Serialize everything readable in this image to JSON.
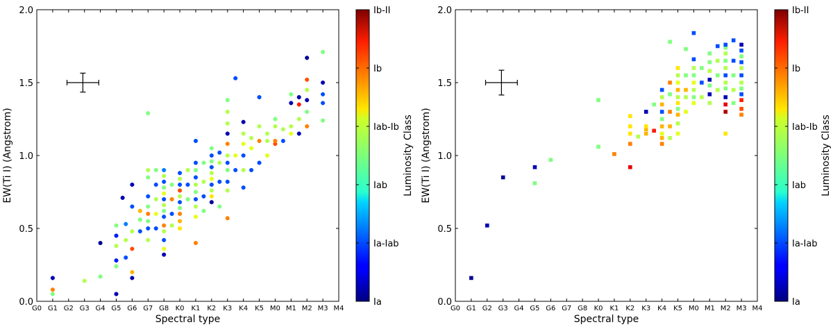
{
  "chart_data": [
    {
      "type": "scatter",
      "marker": "circle",
      "xlabel": "Spectral type",
      "ylabel": "EW(Ti I) (Angstrom)",
      "categories": [
        "G0",
        "G1",
        "G2",
        "G3",
        "G4",
        "G5",
        "G6",
        "G7",
        "G8",
        "K0",
        "K1",
        "K2",
        "K3",
        "K4",
        "K5",
        "M0",
        "M1",
        "M2",
        "M3",
        "M4"
      ],
      "ylim": [
        0.0,
        2.0
      ],
      "yticks": [
        "0.0",
        "0.5",
        "1.0",
        "1.5",
        "2.0"
      ],
      "error_bar": {
        "x": 2.9,
        "y": 1.5,
        "xerr": 1.0,
        "yerr": 0.065
      },
      "colorbar": {
        "label": "Luminosity Class",
        "ticks": [
          "Ia",
          "Ia-Iab",
          "Iab",
          "Iab-Ib",
          "Ib",
          "Ib-II"
        ]
      },
      "points": [
        [
          1,
          0.16,
          0.05
        ],
        [
          1,
          0.05,
          0.5
        ],
        [
          1,
          0.08,
          0.75
        ],
        [
          3,
          0.14,
          0.55
        ],
        [
          4,
          0.17,
          0.5
        ],
        [
          4,
          0.4,
          0.02
        ],
        [
          5,
          0.05,
          0.05
        ],
        [
          5,
          0.24,
          0.5
        ],
        [
          5,
          0.28,
          0.15
        ],
        [
          5,
          0.38,
          0.55
        ],
        [
          5,
          0.45,
          0.15
        ],
        [
          5,
          0.52,
          0.5
        ],
        [
          5.4,
          0.71,
          0.05
        ],
        [
          5.6,
          0.3,
          0.2
        ],
        [
          5.6,
          0.42,
          0.55
        ],
        [
          5.6,
          0.53,
          0.25
        ],
        [
          6,
          0.16,
          0.05
        ],
        [
          6,
          0.2,
          0.7
        ],
        [
          6,
          0.36,
          0.8
        ],
        [
          6,
          0.48,
          0.55
        ],
        [
          6,
          0.65,
          0.2
        ],
        [
          6,
          0.8,
          0.05
        ],
        [
          6.5,
          0.48,
          0.2
        ],
        [
          6.5,
          0.56,
          0.5
        ],
        [
          6.5,
          0.62,
          0.7
        ],
        [
          7,
          0.42,
          0.55
        ],
        [
          7,
          0.5,
          0.2
        ],
        [
          7,
          0.55,
          0.5
        ],
        [
          7,
          0.6,
          0.75
        ],
        [
          7,
          0.65,
          0.5
        ],
        [
          7,
          0.72,
          0.2
        ],
        [
          7,
          0.85,
          0.5
        ],
        [
          7,
          0.9,
          0.55
        ],
        [
          7,
          1.29,
          0.5
        ],
        [
          7.5,
          0.5,
          0.2
        ],
        [
          7.5,
          0.6,
          0.6
        ],
        [
          7.5,
          0.7,
          0.55
        ],
        [
          7.5,
          0.8,
          0.2
        ],
        [
          7.5,
          0.9,
          0.5
        ],
        [
          8,
          0.32,
          0.05
        ],
        [
          8,
          0.36,
          0.6
        ],
        [
          8,
          0.42,
          0.2
        ],
        [
          8,
          0.48,
          0.55
        ],
        [
          8,
          0.52,
          0.75
        ],
        [
          8,
          0.58,
          0.2
        ],
        [
          8,
          0.62,
          0.5
        ],
        [
          8,
          0.66,
          0.55
        ],
        [
          8,
          0.7,
          0.2
        ],
        [
          8,
          0.74,
          0.6
        ],
        [
          8,
          0.78,
          0.5
        ],
        [
          8,
          0.82,
          0.2
        ],
        [
          8,
          0.86,
          0.55
        ],
        [
          8,
          0.9,
          0.25
        ],
        [
          8.5,
          0.52,
          0.55
        ],
        [
          8.5,
          0.6,
          0.2
        ],
        [
          8.5,
          0.7,
          0.75
        ],
        [
          8.5,
          0.8,
          0.5
        ],
        [
          9,
          0.5,
          0.65
        ],
        [
          9,
          0.55,
          0.7
        ],
        [
          9,
          0.6,
          0.75
        ],
        [
          9,
          0.64,
          0.5
        ],
        [
          9,
          0.68,
          0.2
        ],
        [
          9,
          0.72,
          0.55
        ],
        [
          9,
          0.76,
          0.8
        ],
        [
          9,
          0.8,
          0.2
        ],
        [
          9,
          0.84,
          0.55
        ],
        [
          9,
          0.88,
          0.2
        ],
        [
          9.5,
          0.7,
          0.5
        ],
        [
          9.5,
          0.8,
          0.2
        ],
        [
          9.5,
          0.9,
          0.55
        ],
        [
          10,
          0.4,
          0.75
        ],
        [
          10,
          0.58,
          0.6
        ],
        [
          10,
          0.65,
          0.55
        ],
        [
          10,
          0.7,
          0.2
        ],
        [
          10,
          0.75,
          0.5
        ],
        [
          10,
          0.8,
          0.55
        ],
        [
          10,
          0.85,
          0.2
        ],
        [
          10,
          0.9,
          0.5
        ],
        [
          10,
          0.95,
          0.2
        ],
        [
          10,
          1.1,
          0.2
        ],
        [
          10.5,
          0.62,
          0.5
        ],
        [
          10.5,
          0.72,
          0.2
        ],
        [
          10.5,
          0.82,
          0.55
        ],
        [
          10.5,
          0.95,
          0.5
        ],
        [
          11,
          0.68,
          0.02
        ],
        [
          11,
          0.72,
          0.65
        ],
        [
          11,
          0.76,
          0.55
        ],
        [
          11,
          0.8,
          0.2
        ],
        [
          11,
          0.84,
          0.6
        ],
        [
          11,
          0.88,
          0.55
        ],
        [
          11,
          0.92,
          0.2
        ],
        [
          11,
          0.96,
          0.5
        ],
        [
          11,
          1.0,
          0.2
        ],
        [
          11,
          1.05,
          0.5
        ],
        [
          11.5,
          0.65,
          0.5
        ],
        [
          11.5,
          0.82,
          0.2
        ],
        [
          11.5,
          0.95,
          0.55
        ],
        [
          11.5,
          1.02,
          0.2
        ],
        [
          12,
          0.57,
          0.75
        ],
        [
          12,
          0.76,
          0.55
        ],
        [
          12,
          0.82,
          0.2
        ],
        [
          12,
          0.9,
          0.5
        ],
        [
          12,
          0.95,
          0.2
        ],
        [
          12,
          1.0,
          0.55
        ],
        [
          12,
          1.08,
          0.75
        ],
        [
          12,
          1.15,
          0.05
        ],
        [
          12,
          1.22,
          0.55
        ],
        [
          12,
          1.3,
          0.55
        ],
        [
          12,
          1.38,
          0.5
        ],
        [
          12.5,
          0.9,
          0.2
        ],
        [
          12.5,
          1.0,
          0.6
        ],
        [
          12.5,
          1.53,
          0.2
        ],
        [
          13,
          0.78,
          0.2
        ],
        [
          13,
          0.9,
          0.55
        ],
        [
          13,
          1.0,
          0.2
        ],
        [
          13,
          1.08,
          0.6
        ],
        [
          13,
          1.15,
          0.55
        ],
        [
          13,
          1.23,
          0.05
        ],
        [
          13.5,
          0.9,
          0.2
        ],
        [
          13.5,
          1.05,
          0.6
        ],
        [
          13.5,
          1.12,
          0.55
        ],
        [
          14,
          0.95,
          0.2
        ],
        [
          14,
          1.1,
          0.75
        ],
        [
          14,
          1.2,
          0.55
        ],
        [
          14,
          1.4,
          0.2
        ],
        [
          14.5,
          1.0,
          0.6
        ],
        [
          14.5,
          1.1,
          0.55
        ],
        [
          14.5,
          1.15,
          0.55
        ],
        [
          15,
          1.08,
          0.8
        ],
        [
          15,
          1.1,
          0.75
        ],
        [
          15,
          1.2,
          0.55
        ],
        [
          15,
          1.25,
          0.5
        ],
        [
          15.5,
          1.1,
          0.2
        ],
        [
          15.5,
          1.18,
          0.55
        ],
        [
          16,
          1.15,
          0.6
        ],
        [
          16,
          1.2,
          0.55
        ],
        [
          16,
          1.36,
          0.05
        ],
        [
          16,
          1.42,
          0.5
        ],
        [
          16.5,
          1.15,
          0.05
        ],
        [
          16.5,
          1.25,
          0.55
        ],
        [
          16.5,
          1.35,
          0.85
        ],
        [
          16.5,
          1.4,
          0.05
        ],
        [
          17,
          1.2,
          0.75
        ],
        [
          17,
          1.3,
          0.5
        ],
        [
          17,
          1.38,
          0.05
        ],
        [
          17,
          1.45,
          0.55
        ],
        [
          17,
          1.52,
          0.8
        ],
        [
          17,
          1.67,
          0.02
        ],
        [
          18,
          1.24,
          0.5
        ],
        [
          18,
          1.36,
          0.2
        ],
        [
          18,
          1.42,
          0.2
        ],
        [
          18,
          1.5,
          0.05
        ],
        [
          18,
          1.71,
          0.5
        ]
      ]
    },
    {
      "type": "scatter",
      "marker": "square",
      "xlabel": "Spectral type",
      "ylabel": "EW(Ti I) (Angstrom)",
      "categories": [
        "G0",
        "G1",
        "G2",
        "G3",
        "G4",
        "G5",
        "G6",
        "G7",
        "G8",
        "K0",
        "K1",
        "K2",
        "K3",
        "K4",
        "K5",
        "M0",
        "M1",
        "M2",
        "M3",
        "M4"
      ],
      "ylim": [
        0.0,
        2.0
      ],
      "yticks": [
        "0.0",
        "0.5",
        "1.0",
        "1.5",
        "2.0"
      ],
      "error_bar": {
        "x": 2.9,
        "y": 1.5,
        "xerr": 1.0,
        "yerr": 0.085
      },
      "colorbar": {
        "label": "Luminosity Class",
        "ticks": [
          "Ia",
          "Ia-Iab",
          "Iab",
          "Iab-Ib",
          "Ib",
          "Ib-II"
        ]
      },
      "points": [
        [
          1,
          0.16,
          0.02
        ],
        [
          2,
          0.52,
          0.05
        ],
        [
          3,
          0.85,
          0.02
        ],
        [
          5,
          0.81,
          0.5
        ],
        [
          5,
          0.92,
          0.05
        ],
        [
          6,
          0.97,
          0.5
        ],
        [
          9,
          1.06,
          0.5
        ],
        [
          9,
          1.38,
          0.5
        ],
        [
          10,
          1.01,
          0.75
        ],
        [
          11,
          0.92,
          0.9
        ],
        [
          11,
          1.08,
          0.75
        ],
        [
          11,
          1.15,
          0.65
        ],
        [
          11,
          1.2,
          0.65
        ],
        [
          11,
          1.27,
          0.65
        ],
        [
          11.5,
          1.13,
          0.55
        ],
        [
          12,
          1.15,
          0.7
        ],
        [
          12,
          1.18,
          0.7
        ],
        [
          12,
          1.2,
          0.65
        ],
        [
          12,
          1.3,
          0.05
        ],
        [
          12.5,
          1.17,
          0.85
        ],
        [
          12.5,
          1.35,
          0.5
        ],
        [
          13,
          1.08,
          0.75
        ],
        [
          13,
          1.12,
          0.7
        ],
        [
          13,
          1.15,
          0.6
        ],
        [
          13,
          1.2,
          0.7
        ],
        [
          13,
          1.25,
          0.5
        ],
        [
          13,
          1.3,
          0.2
        ],
        [
          13,
          1.35,
          0.7
        ],
        [
          13,
          1.4,
          0.55
        ],
        [
          13,
          1.45,
          0.2
        ],
        [
          13.5,
          1.12,
          0.55
        ],
        [
          13.5,
          1.2,
          0.7
        ],
        [
          13.5,
          1.3,
          0.75
        ],
        [
          13.5,
          1.42,
          0.5
        ],
        [
          13.5,
          1.5,
          0.75
        ],
        [
          13.5,
          1.78,
          0.5
        ],
        [
          14,
          1.15,
          0.6
        ],
        [
          14,
          1.22,
          0.55
        ],
        [
          14,
          1.28,
          0.7
        ],
        [
          14,
          1.32,
          0.5
        ],
        [
          14,
          1.36,
          0.65
        ],
        [
          14,
          1.4,
          0.55
        ],
        [
          14,
          1.45,
          0.7
        ],
        [
          14,
          1.5,
          0.6
        ],
        [
          14,
          1.55,
          0.55
        ],
        [
          14,
          1.6,
          0.65
        ],
        [
          14.5,
          1.3,
          0.6
        ],
        [
          14.5,
          1.4,
          0.55
        ],
        [
          14.5,
          1.45,
          0.7
        ],
        [
          14.5,
          1.55,
          0.5
        ],
        [
          14.5,
          1.73,
          0.5
        ],
        [
          15,
          1.36,
          0.6
        ],
        [
          15,
          1.4,
          0.5
        ],
        [
          15,
          1.45,
          0.55
        ],
        [
          15,
          1.5,
          0.6
        ],
        [
          15,
          1.55,
          0.5
        ],
        [
          15,
          1.6,
          0.55
        ],
        [
          15,
          1.66,
          0.2
        ],
        [
          15,
          1.84,
          0.2
        ],
        [
          15.5,
          1.4,
          0.55
        ],
        [
          15.5,
          1.5,
          0.2
        ],
        [
          15.5,
          1.6,
          0.5
        ],
        [
          16,
          1.36,
          0.55
        ],
        [
          16,
          1.42,
          0.05
        ],
        [
          16,
          1.48,
          0.5
        ],
        [
          16,
          1.52,
          0.05
        ],
        [
          16,
          1.58,
          0.55
        ],
        [
          16,
          1.64,
          0.5
        ],
        [
          16,
          1.7,
          0.5
        ],
        [
          16.5,
          1.45,
          0.55
        ],
        [
          16.5,
          1.55,
          0.5
        ],
        [
          16.5,
          1.65,
          0.55
        ],
        [
          16.5,
          1.75,
          0.2
        ],
        [
          17,
          1.15,
          0.65
        ],
        [
          17,
          1.3,
          0.95
        ],
        [
          17,
          1.35,
          0.9
        ],
        [
          17,
          1.4,
          0.05
        ],
        [
          17,
          1.46,
          0.5
        ],
        [
          17,
          1.5,
          0.55
        ],
        [
          17,
          1.55,
          0.2
        ],
        [
          17,
          1.6,
          0.55
        ],
        [
          17,
          1.65,
          0.5
        ],
        [
          17,
          1.7,
          0.55
        ],
        [
          17,
          1.74,
          0.5
        ],
        [
          17,
          1.76,
          0.2
        ],
        [
          17.5,
          1.36,
          0.5
        ],
        [
          17.5,
          1.45,
          0.55
        ],
        [
          17.5,
          1.55,
          0.5
        ],
        [
          17.5,
          1.65,
          0.2
        ],
        [
          17.5,
          1.79,
          0.2
        ],
        [
          18,
          1.28,
          0.75
        ],
        [
          18,
          1.32,
          0.8
        ],
        [
          18,
          1.38,
          0.85
        ],
        [
          18,
          1.42,
          0.2
        ],
        [
          18,
          1.46,
          0.5
        ],
        [
          18,
          1.5,
          0.55
        ],
        [
          18,
          1.55,
          0.2
        ],
        [
          18,
          1.6,
          0.55
        ],
        [
          18,
          1.64,
          0.2
        ],
        [
          18,
          1.68,
          0.5
        ],
        [
          18,
          1.72,
          0.2
        ],
        [
          18,
          1.76,
          0.05
        ]
      ]
    }
  ]
}
